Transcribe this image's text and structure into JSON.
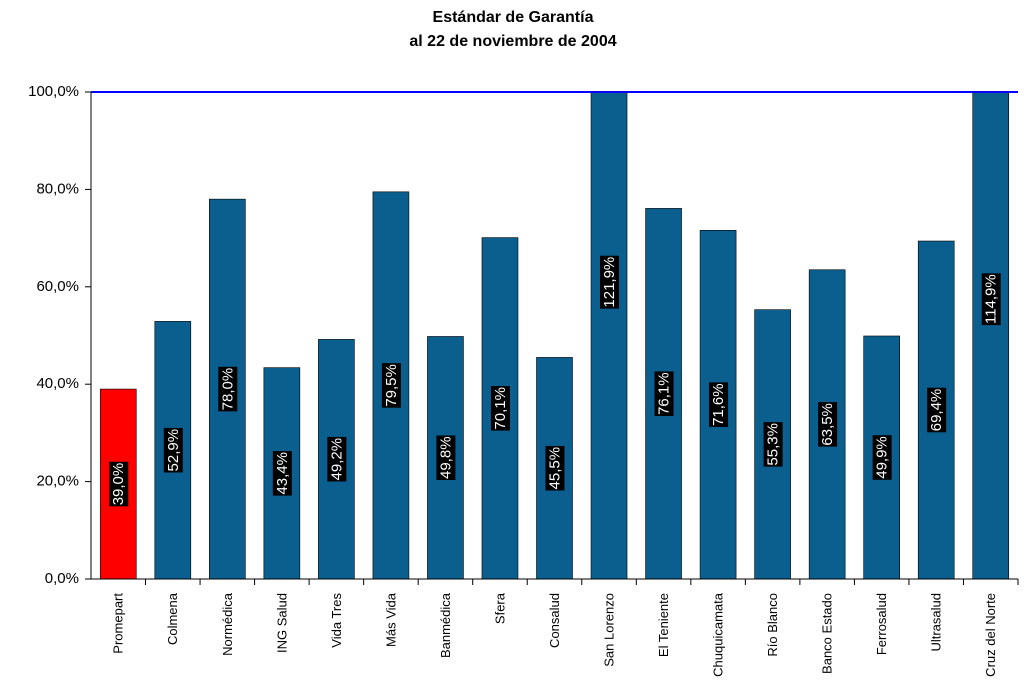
{
  "chart_data": {
    "type": "bar",
    "title": "Estándar de Garantía",
    "subtitle": "al 22 de noviembre de 2004",
    "categories": [
      "Promepart",
      "Colmena",
      "Normédica",
      "ING Salud",
      "Vida Tres",
      "Más Vida",
      "Banmédica",
      "Sfera",
      "Consalud",
      "San Lorenzo",
      "El Teniente",
      "Chuquicamata",
      "Río Blanco",
      "Banco Estado",
      "Ferrosalud",
      "Ultrasalud",
      "Cruz del Norte"
    ],
    "values": [
      39.0,
      52.9,
      78.0,
      43.4,
      49.2,
      79.5,
      49.8,
      70.1,
      45.5,
      121.9,
      76.1,
      71.6,
      55.3,
      63.5,
      49.9,
      69.4,
      114.9
    ],
    "value_labels": [
      "39,0%",
      "52,9%",
      "78,0%",
      "43,4%",
      "49,2%",
      "79,5%",
      "49,8%",
      "70,1%",
      "45,5%",
      "121,9%",
      "76,1%",
      "71,6%",
      "55,3%",
      "63,5%",
      "49,9%",
      "69,4%",
      "114,9%"
    ],
    "colors": [
      "#ff0000",
      "#0b5f8e",
      "#0b5f8e",
      "#0b5f8e",
      "#0b5f8e",
      "#0b5f8e",
      "#0b5f8e",
      "#0b5f8e",
      "#0b5f8e",
      "#0b5f8e",
      "#0b5f8e",
      "#0b5f8e",
      "#0b5f8e",
      "#0b5f8e",
      "#0b5f8e",
      "#0b5f8e",
      "#0b5f8e"
    ],
    "ylim": [
      0,
      100
    ],
    "yticks": [
      {
        "value": 0,
        "label": "0,0%"
      },
      {
        "value": 20,
        "label": "20,0%"
      },
      {
        "value": 40,
        "label": "40,0%"
      },
      {
        "value": 60,
        "label": "60,0%"
      },
      {
        "value": 80,
        "label": "80,0%"
      },
      {
        "value": 100,
        "label": "100,0%"
      }
    ],
    "reference_line": 100,
    "reference_color": "#0000ff",
    "grid": false
  }
}
